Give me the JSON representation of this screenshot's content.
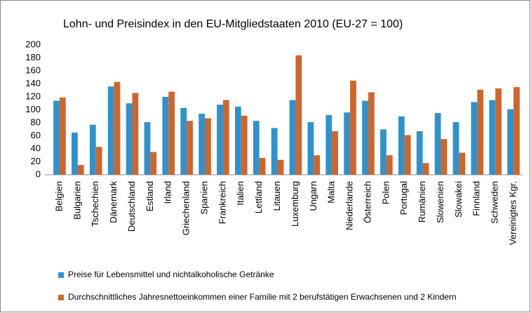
{
  "chart_data": {
    "type": "bar",
    "title": "Lohn- und Preisindex in den EU-Mitgliedstaaten 2010 (EU-27 = 100)",
    "categories": [
      "Belgien",
      "Bulgarien",
      "Tschechien",
      "Dänemark",
      "Deutschland",
      "Estland",
      "Irland",
      "Griechenland",
      "Spanien",
      "Frankreich",
      "Italien",
      "Lettland",
      "Litauen",
      "Luxemburg",
      "Ungarn",
      "Malta",
      "Niederlande",
      "Österreich",
      "Polen",
      "Portugal",
      "Rumänien",
      "Slowenien",
      "Slowakei",
      "Finnland",
      "Schweden",
      "Vereinigtes Kgr."
    ],
    "series": [
      {
        "name": "Preise für Lebensmittel und nichtalkoholische Getränke",
        "color": "#2e93cd",
        "values": [
          114,
          65,
          77,
          136,
          110,
          81,
          120,
          103,
          94,
          108,
          105,
          83,
          72,
          115,
          81,
          92,
          96,
          114,
          70,
          90,
          67,
          95,
          81,
          112,
          115,
          101
        ]
      },
      {
        "name": "Durchschnittliches Jahresnettoeinkommen einer Familie mit 2 berufstätigen Erwachsenen und 2 Kindern",
        "color": "#d0652b",
        "values": [
          119,
          15,
          43,
          143,
          126,
          35,
          128,
          83,
          87,
          115,
          91,
          26,
          23,
          184,
          30,
          67,
          145,
          127,
          30,
          61,
          18,
          55,
          34,
          131,
          133,
          135
        ]
      }
    ],
    "ylim": [
      0,
      200
    ],
    "yticks": [
      0,
      20,
      40,
      60,
      80,
      100,
      120,
      140,
      160,
      180,
      200
    ],
    "grid": false,
    "legend": "bottom"
  }
}
